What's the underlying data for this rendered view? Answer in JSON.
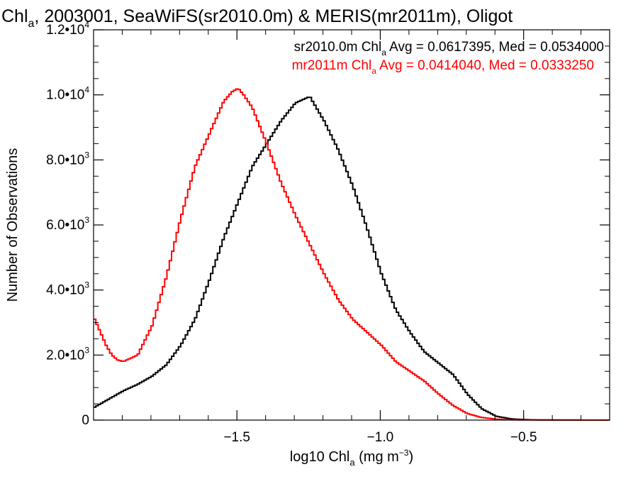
{
  "chart_data": {
    "type": "line",
    "title": {
      "pre": "Chl",
      "sub": "a",
      "post": ", 2003001, SeaWiFS(sr2010.0m) & MERIS(mr2011m), Oligot"
    },
    "xlabel": {
      "pre": "log10 Chl",
      "sub": "a",
      "mid": " (mg m",
      "sup": "−3",
      "post": ")"
    },
    "ylabel": "Number of Observations",
    "xlim": [
      -2.0,
      -0.2
    ],
    "ylim": [
      0,
      12000
    ],
    "x_ticks": [
      {
        "value": -1.5,
        "label": "−1.5"
      },
      {
        "value": -1.0,
        "label": "−1.0"
      },
      {
        "value": -0.5,
        "label": "−0.5"
      }
    ],
    "y_ticks": [
      {
        "value": 0,
        "mant": "0",
        "exp": ""
      },
      {
        "value": 2000,
        "mant": "2.0•10",
        "exp": "3"
      },
      {
        "value": 4000,
        "mant": "4.0•10",
        "exp": "3"
      },
      {
        "value": 6000,
        "mant": "6.0•10",
        "exp": "3"
      },
      {
        "value": 8000,
        "mant": "8.0•10",
        "exp": "3"
      },
      {
        "value": 10000,
        "mant": "1.0•10",
        "exp": "4"
      },
      {
        "value": 12000,
        "mant": "1.2•10",
        "exp": "4"
      }
    ],
    "legend": [
      {
        "pre": "sr2010.0m Chl",
        "sub": "a",
        "post": " Avg = 0.0617395, Med = 0.0534000",
        "color": "#000000"
      },
      {
        "pre": "mr2011m Chl",
        "sub": "a",
        "post": " Avg = 0.0414040, Med = 0.0333250",
        "color": "#ff0000"
      }
    ],
    "legend_position": "top-right",
    "grid": false,
    "series": [
      {
        "color": "#000000",
        "step": true,
        "x": [
          -2.0,
          -1.95,
          -1.9,
          -1.85,
          -1.8,
          -1.75,
          -1.7,
          -1.65,
          -1.6,
          -1.55,
          -1.5,
          -1.45,
          -1.4,
          -1.35,
          -1.3,
          -1.25,
          -1.2,
          -1.15,
          -1.1,
          -1.05,
          -1.0,
          -0.95,
          -0.9,
          -0.85,
          -0.8,
          -0.75,
          -0.7,
          -0.65,
          -0.6,
          -0.55,
          -0.5,
          -0.45,
          -0.4,
          -0.35,
          -0.3,
          -0.25,
          -0.2
        ],
        "y": [
          400,
          650,
          900,
          1100,
          1350,
          1700,
          2300,
          3100,
          4300,
          5600,
          6700,
          7800,
          8500,
          9200,
          9750,
          9950,
          9200,
          8300,
          7200,
          5900,
          4500,
          3400,
          2700,
          2100,
          1750,
          1400,
          800,
          350,
          120,
          40,
          15,
          5,
          3,
          2,
          1,
          0,
          0
        ]
      },
      {
        "color": "#ff0000",
        "step": true,
        "x": [
          -2.0,
          -1.98,
          -1.96,
          -1.94,
          -1.92,
          -1.9,
          -1.85,
          -1.8,
          -1.75,
          -1.7,
          -1.65,
          -1.6,
          -1.55,
          -1.52,
          -1.5,
          -1.48,
          -1.45,
          -1.4,
          -1.35,
          -1.3,
          -1.25,
          -1.2,
          -1.15,
          -1.1,
          -1.05,
          -1.0,
          -0.95,
          -0.9,
          -0.85,
          -0.8,
          -0.75,
          -0.7,
          -0.65,
          -0.6,
          -0.55,
          -0.5,
          -0.4,
          -0.3,
          -0.2
        ],
        "y": [
          3100,
          2700,
          2300,
          2000,
          1850,
          1800,
          2000,
          2900,
          4400,
          6200,
          7800,
          8800,
          9800,
          10100,
          10200,
          10000,
          9600,
          8500,
          7300,
          6300,
          5400,
          4500,
          3700,
          3100,
          2700,
          2300,
          1800,
          1500,
          1200,
          800,
          450,
          200,
          80,
          30,
          10,
          5,
          2,
          1,
          0
        ]
      }
    ]
  }
}
